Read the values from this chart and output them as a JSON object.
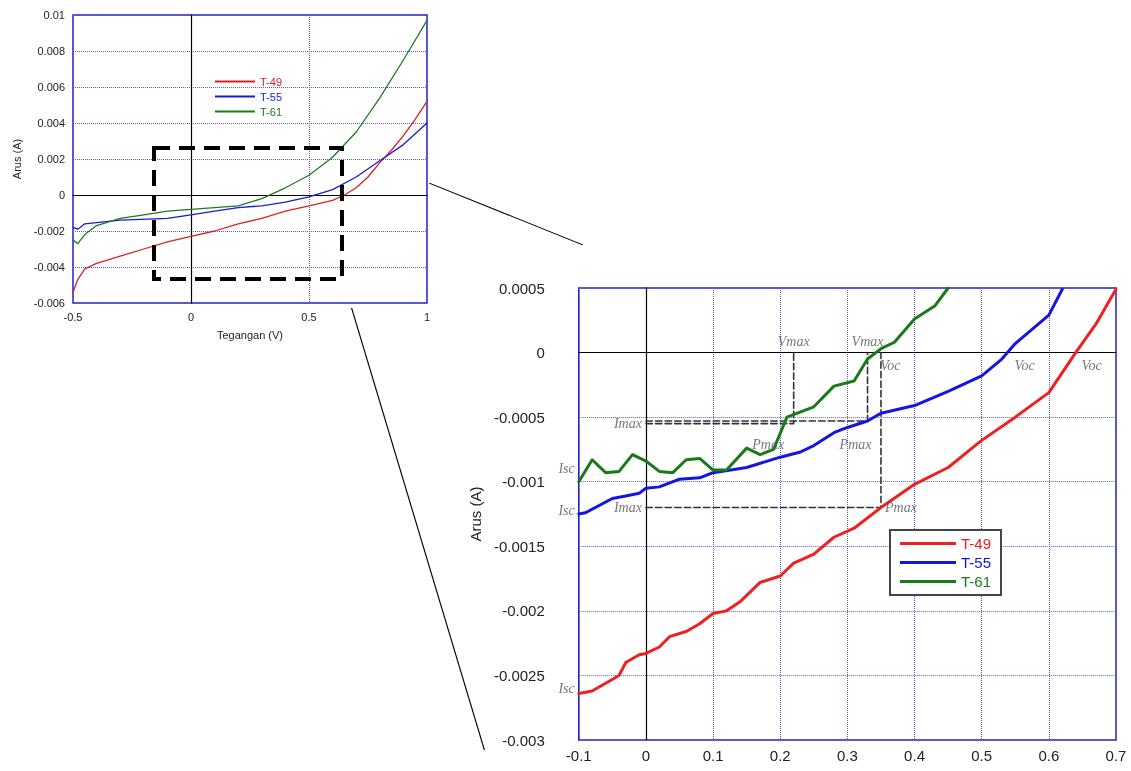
{
  "chart_data": [
    {
      "type": "line",
      "xlabel": "Tegangan (V)",
      "ylabel": "Arus (A)",
      "xlim": [
        -0.5,
        1
      ],
      "xticks": [
        -0.5,
        0,
        0.5,
        1
      ],
      "ylim": [
        -0.006,
        0.01
      ],
      "yticks": [
        -0.006,
        -0.004,
        -0.002,
        0,
        0.002,
        0.004,
        0.006,
        0.008,
        0.01
      ],
      "grid": true,
      "legend": "top",
      "line_style": "solid",
      "marker": "none",
      "series": [
        {
          "name": "T-49",
          "color": "#e02020",
          "x": [
            -0.5,
            -0.48,
            -0.45,
            -0.4,
            -0.3,
            -0.2,
            -0.1,
            0,
            0.1,
            0.2,
            0.3,
            0.4,
            0.5,
            0.6,
            0.65,
            0.7,
            0.75,
            0.8,
            0.85,
            0.9,
            0.95,
            1
          ],
          "values": [
            -0.0054,
            -0.0047,
            -0.0041,
            -0.0038,
            -0.0034,
            -0.003,
            -0.0026,
            -0.0023,
            -0.002,
            -0.0016,
            -0.0013,
            -0.0009,
            -0.0006,
            -0.0003,
            0,
            0.0004,
            0.001,
            0.0018,
            0.0025,
            0.0033,
            0.0042,
            0.0052
          ]
        },
        {
          "name": "T-55",
          "color": "#1a1ad8",
          "x": [
            -0.5,
            -0.48,
            -0.45,
            -0.3,
            -0.1,
            0,
            0.1,
            0.2,
            0.3,
            0.4,
            0.5,
            0.6,
            0.7,
            0.8,
            0.9,
            1
          ],
          "values": [
            -0.0018,
            -0.0019,
            -0.0016,
            -0.0014,
            -0.0013,
            -0.0011,
            -0.0009,
            -0.0007,
            -0.0006,
            -0.0004,
            -0.0001,
            0.0003,
            0.001,
            0.0019,
            0.0028,
            0.004
          ]
        },
        {
          "name": "T-61",
          "color": "#1e7a1e",
          "x": [
            -0.5,
            -0.48,
            -0.45,
            -0.4,
            -0.3,
            -0.2,
            -0.1,
            0,
            0.1,
            0.2,
            0.3,
            0.4,
            0.5,
            0.6,
            0.7,
            0.8,
            0.9,
            1
          ],
          "values": [
            -0.0025,
            -0.0027,
            -0.0022,
            -0.0017,
            -0.0013,
            -0.0011,
            -0.0009,
            -0.0008,
            -0.0007,
            -0.0006,
            -0.0002,
            0.0004,
            0.0011,
            0.0021,
            0.0035,
            0.0054,
            0.0075,
            0.0097
          ]
        }
      ]
    },
    {
      "type": "line",
      "ylabel": "Arus (A)",
      "xlim": [
        -0.1,
        0.7
      ],
      "xticks": [
        -0.1,
        0,
        0.1,
        0.2,
        0.3,
        0.4,
        0.5,
        0.6,
        0.7
      ],
      "ylim": [
        -0.003,
        0.0005
      ],
      "yticks": [
        -0.003,
        -0.0025,
        -0.002,
        -0.0015,
        -0.001,
        -0.0005,
        0,
        0.0005
      ],
      "grid": true,
      "legend": "right",
      "line_style": "solid",
      "marker": "none",
      "annotations": [
        {
          "text": "Vmax",
          "x": 0.22,
          "y": 0
        },
        {
          "text": "Vmax",
          "x": 0.33,
          "y": 0
        },
        {
          "text": "Imax",
          "x": 0,
          "y": -0.00055
        },
        {
          "text": "Imax",
          "x": 0,
          "y": -0.0012
        },
        {
          "text": "Isc",
          "x": -0.1,
          "y": -0.0009
        },
        {
          "text": "Isc",
          "x": -0.1,
          "y": -0.00122
        },
        {
          "text": "Isc",
          "x": -0.1,
          "y": -0.0026
        },
        {
          "text": "Pmax",
          "x": 0.2,
          "y": -0.00058
        },
        {
          "text": "Pmax",
          "x": 0.33,
          "y": -0.00058
        },
        {
          "text": "Pmax",
          "x": 0.35,
          "y": -0.0012
        },
        {
          "text": "Voc",
          "x": 0.34,
          "y": 0
        },
        {
          "text": "Voc",
          "x": 0.54,
          "y": 0
        },
        {
          "text": "Voc",
          "x": 0.64,
          "y": 0
        }
      ],
      "series": [
        {
          "name": "T-49",
          "color": "#ee2020",
          "x": [
            -0.1,
            -0.08,
            -0.06,
            -0.04,
            -0.03,
            -0.01,
            0,
            0.02,
            0.035,
            0.06,
            0.08,
            0.1,
            0.12,
            0.14,
            0.17,
            0.2,
            0.22,
            0.25,
            0.28,
            0.31,
            0.35,
            0.4,
            0.45,
            0.5,
            0.55,
            0.6,
            0.64,
            0.67,
            0.7
          ],
          "values": [
            -0.00264,
            -0.00262,
            -0.00256,
            -0.0025,
            -0.0024,
            -0.00234,
            -0.00233,
            -0.00228,
            -0.0022,
            -0.00216,
            -0.0021,
            -0.00202,
            -0.002,
            -0.00193,
            -0.00178,
            -0.00173,
            -0.00163,
            -0.00156,
            -0.00143,
            -0.00136,
            -0.0012,
            -0.00102,
            -0.00089,
            -0.00068,
            -0.0005,
            -0.00031,
            0,
            0.00022,
            0.00049
          ]
        },
        {
          "name": "T-55",
          "color": "#1515e0",
          "x": [
            -0.1,
            -0.09,
            -0.05,
            -0.03,
            -0.01,
            0,
            0.02,
            0.05,
            0.08,
            0.1,
            0.15,
            0.2,
            0.23,
            0.25,
            0.28,
            0.3,
            0.33,
            0.35,
            0.4,
            0.45,
            0.5,
            0.53,
            0.55,
            0.6,
            0.62
          ],
          "values": [
            -0.00125,
            -0.00124,
            -0.00113,
            -0.00111,
            -0.00109,
            -0.00105,
            -0.00104,
            -0.00098,
            -0.00097,
            -0.00093,
            -0.00089,
            -0.00081,
            -0.00077,
            -0.00072,
            -0.00062,
            -0.00058,
            -0.00053,
            -0.00047,
            -0.00041,
            -0.0003,
            -0.00018,
            -5e-05,
            7e-05,
            0.00029,
            0.00049
          ]
        },
        {
          "name": "T-61",
          "color": "#1a7a1a",
          "x": [
            -0.1,
            -0.08,
            -0.06,
            -0.04,
            -0.02,
            0,
            0.02,
            0.04,
            0.06,
            0.08,
            0.1,
            0.12,
            0.15,
            0.17,
            0.19,
            0.21,
            0.25,
            0.28,
            0.31,
            0.33,
            0.35,
            0.37,
            0.4,
            0.43,
            0.45
          ],
          "values": [
            -0.001,
            -0.00083,
            -0.00093,
            -0.00092,
            -0.00079,
            -0.00084,
            -0.00092,
            -0.00093,
            -0.00083,
            -0.00082,
            -0.00091,
            -0.00091,
            -0.00074,
            -0.00079,
            -0.00075,
            -0.0005,
            -0.00042,
            -0.00026,
            -0.00022,
            -5e-05,
            3e-05,
            8e-05,
            0.00026,
            0.00036,
            0.0005
          ]
        },
        {
          "color": "#333333",
          "line_style": "dashed",
          "x": [
            0,
            0.22,
            0.22
          ],
          "values": [
            -0.00055,
            -0.00055,
            0
          ]
        },
        {
          "color": "#333333",
          "line_style": "dashed",
          "x": [
            0,
            0.33,
            0.33
          ],
          "values": [
            -0.00053,
            -0.00053,
            0
          ]
        },
        {
          "color": "#333333",
          "line_style": "dashed",
          "x": [
            0,
            0.35,
            0.35
          ],
          "values": [
            -0.0012,
            -0.0012,
            0
          ]
        }
      ]
    }
  ]
}
